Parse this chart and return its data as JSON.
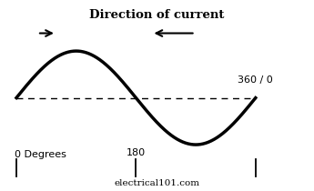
{
  "title": "Direction of current",
  "sine_color": "#000000",
  "sine_linewidth": 2.5,
  "dashed_color": "#000000",
  "background": "#ffffff",
  "label_0deg": "0 Degrees",
  "label_180": "180",
  "label_360": "360 / 0",
  "label_website": "electrical101.com",
  "title_fontsize": 9.5,
  "label_fontsize": 8,
  "website_fontsize": 7.5
}
